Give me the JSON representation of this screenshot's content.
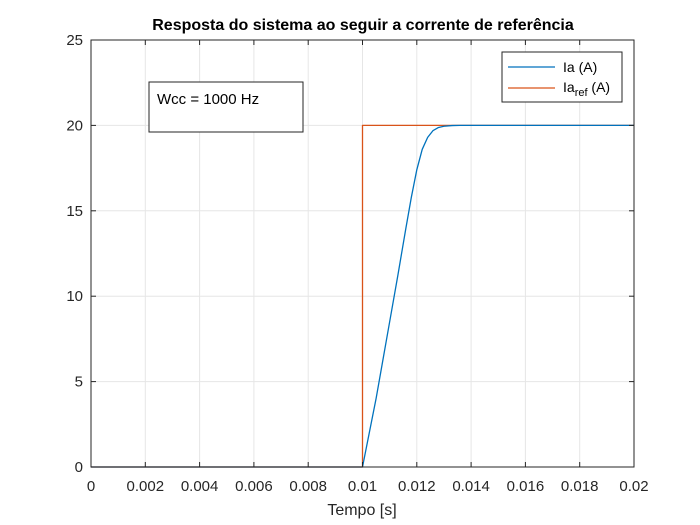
{
  "chart_data": {
    "type": "line",
    "title": "Resposta do sistema ao seguir a corrente de referência",
    "xlabel": "Tempo [s]",
    "ylabel": "",
    "xlim": [
      0,
      0.02
    ],
    "ylim": [
      0,
      25
    ],
    "xticks": [
      0,
      0.002,
      0.004,
      0.006,
      0.008,
      0.01,
      0.012,
      0.014,
      0.016,
      0.018,
      0.02
    ],
    "xtick_labels": [
      "0",
      "0.002",
      "0.004",
      "0.006",
      "0.008",
      "0.01",
      "0.012",
      "0.014",
      "0.016",
      "0.018",
      "0.02"
    ],
    "yticks": [
      0,
      5,
      10,
      15,
      20,
      25
    ],
    "ytick_labels": [
      "0",
      "5",
      "10",
      "15",
      "20",
      "25"
    ],
    "grid": true,
    "legend_position": "top-right",
    "annotation": "Wcc = 1000 Hz",
    "series": [
      {
        "name": "Ia (A)",
        "color": "#0072BD",
        "x": [
          0,
          0.01,
          0.0105,
          0.011,
          0.0113,
          0.0116,
          0.0118,
          0.012,
          0.0122,
          0.0124,
          0.0126,
          0.0128,
          0.013,
          0.0133,
          0.0136,
          0.014,
          0.015,
          0.02
        ],
        "y": [
          0,
          0,
          4.0,
          8.5,
          11.2,
          14.0,
          15.8,
          17.4,
          18.6,
          19.3,
          19.7,
          19.88,
          19.95,
          19.99,
          20.0,
          20.0,
          20.0,
          20.0
        ]
      },
      {
        "name_main": "Ia",
        "name_sub": "ref",
        "name_suffix": " (A)",
        "color": "#D95319",
        "x": [
          0,
          0.01,
          0.01,
          0.02
        ],
        "y": [
          0,
          0,
          20,
          20
        ]
      }
    ]
  }
}
